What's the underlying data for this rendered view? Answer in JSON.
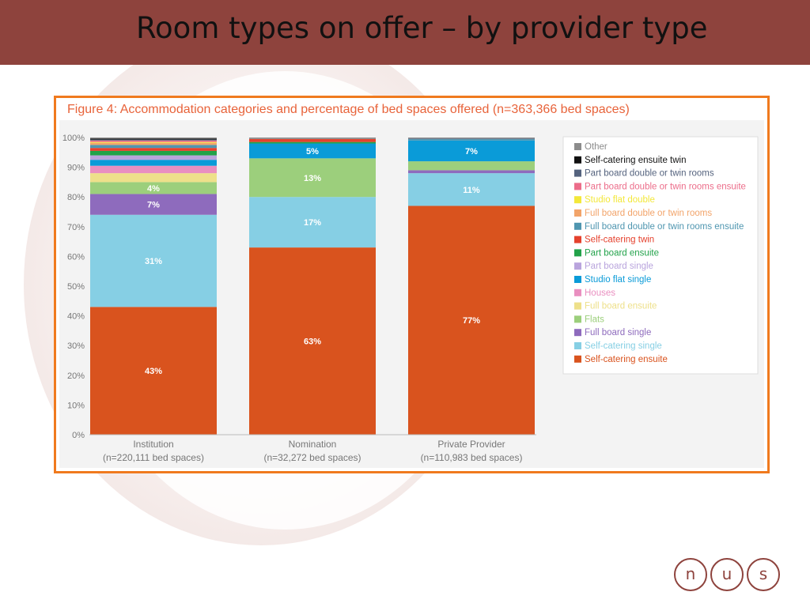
{
  "slide": {
    "title": "Room types on offer – by provider type"
  },
  "logo": {
    "letters": [
      "n",
      "u",
      "s"
    ]
  },
  "colors": {
    "header": "#8e433d",
    "frame": "#f07a1e",
    "figure_title": "#e8633a"
  },
  "chart_data": {
    "type": "bar",
    "stacked": true,
    "title": "Figure 4: Accommodation categories and percentage of bed spaces offered (n=363,366 bed spaces)",
    "categories": [
      "Institution",
      "Nomination",
      "Private Provider"
    ],
    "category_sublabels": [
      "(n=220,111 bed spaces)",
      "(n=32,272 bed spaces)",
      "(n=110,983 bed spaces)"
    ],
    "ylim": [
      0,
      100
    ],
    "yticks": [
      "0%",
      "10%",
      "20%",
      "30%",
      "40%",
      "50%",
      "60%",
      "70%",
      "80%",
      "90%",
      "100%"
    ],
    "legend_position": "right",
    "series": [
      {
        "name": "Self-catering ensuite",
        "color": "#d9531e",
        "values": [
          43,
          63,
          77
        ],
        "labels": [
          "43%",
          "63%",
          "77%"
        ]
      },
      {
        "name": "Self-catering single",
        "color": "#86cfe4",
        "values": [
          31,
          17,
          11
        ],
        "labels": [
          "31%",
          "17%",
          "11%"
        ]
      },
      {
        "name": "Full board single",
        "color": "#8e6bbd",
        "values": [
          7,
          0,
          1
        ],
        "labels": [
          "7%",
          "",
          ""
        ]
      },
      {
        "name": "Flats",
        "color": "#9ccf7c",
        "values": [
          4,
          13,
          3
        ],
        "labels": [
          "4%",
          "13%",
          ""
        ]
      },
      {
        "name": "Full board ensuite",
        "color": "#eee08a",
        "values": [
          3,
          0,
          0
        ],
        "labels": [
          "",
          "",
          ""
        ]
      },
      {
        "name": "Houses",
        "color": "#e98fc0",
        "values": [
          2.5,
          0,
          0
        ],
        "labels": [
          "",
          "",
          ""
        ]
      },
      {
        "name": "Studio flat single",
        "color": "#0a9bd8",
        "values": [
          2,
          5,
          7
        ],
        "labels": [
          "",
          "5%",
          "7%"
        ]
      },
      {
        "name": "Part board single",
        "color": "#b9a4dd",
        "values": [
          1.5,
          0,
          0
        ],
        "labels": [
          "",
          "",
          ""
        ]
      },
      {
        "name": "Part board ensuite",
        "color": "#22a24a",
        "values": [
          1.5,
          0.5,
          0
        ],
        "labels": [
          "",
          "",
          ""
        ]
      },
      {
        "name": "Self-catering twin",
        "color": "#e5412d",
        "values": [
          1,
          1,
          0
        ],
        "labels": [
          "",
          "",
          ""
        ]
      },
      {
        "name": "Full board double or twin rooms ensuite",
        "color": "#4f96b0",
        "values": [
          1,
          0,
          0.5
        ],
        "labels": [
          "",
          "",
          ""
        ]
      },
      {
        "name": "Full board double or twin rooms",
        "color": "#f2a46a",
        "values": [
          0.7,
          0,
          0
        ],
        "labels": [
          "",
          "",
          ""
        ]
      },
      {
        "name": "Studio flat double",
        "color": "#f3e83a",
        "values": [
          0.3,
          0,
          0
        ],
        "labels": [
          "",
          "",
          ""
        ]
      },
      {
        "name": "Part board double or twin rooms ensuite",
        "color": "#ec6d8a",
        "values": [
          0.5,
          0,
          0
        ],
        "labels": [
          "",
          "",
          ""
        ]
      },
      {
        "name": "Part board double or twin rooms",
        "color": "#55637e",
        "values": [
          0.3,
          0,
          0.2
        ],
        "labels": [
          "",
          "",
          ""
        ]
      },
      {
        "name": "Self-catering ensuite twin",
        "color": "#111111",
        "values": [
          0.3,
          0,
          0
        ],
        "labels": [
          "",
          "",
          ""
        ]
      },
      {
        "name": "Other",
        "color": "#8c8c8c",
        "values": [
          0.4,
          0.5,
          0.3
        ],
        "labels": [
          "",
          "",
          ""
        ]
      }
    ]
  }
}
